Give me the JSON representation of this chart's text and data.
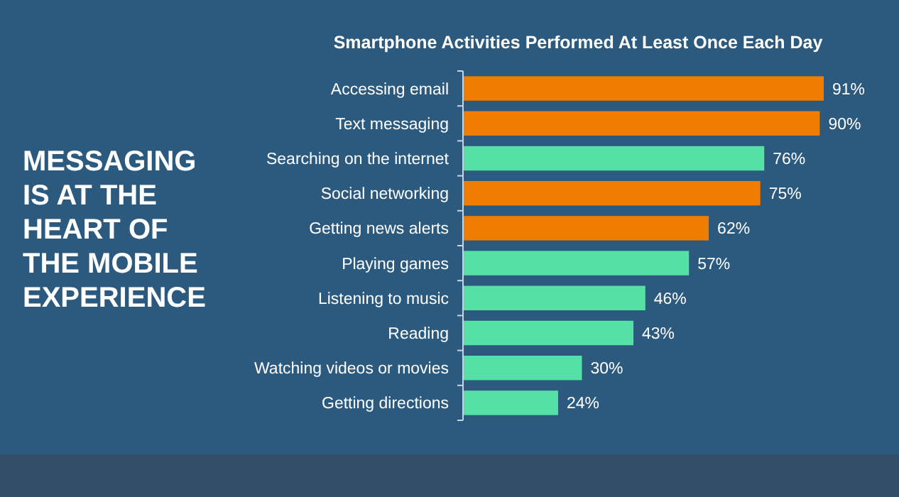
{
  "chart_data": {
    "type": "bar",
    "orientation": "horizontal",
    "title": "Smartphone Activities Performed At Least Once Each Day",
    "annotations": [
      "MESSAGING IS AT THE HEART OF THE MOBILE EXPERIENCE"
    ],
    "categories": [
      "Accessing email",
      "Text messaging",
      "Searching on the internet",
      "Social networking",
      "Getting news alerts",
      "Playing games",
      "Listening to music",
      "Reading",
      "Watching videos or movies",
      "Getting directions"
    ],
    "values": [
      91,
      90,
      76,
      75,
      62,
      57,
      46,
      43,
      30,
      24
    ],
    "colors": [
      "#f07d00",
      "#f07d00",
      "#55e0a6",
      "#f07d00",
      "#f07d00",
      "#55e0a6",
      "#55e0a6",
      "#55e0a6",
      "#55e0a6",
      "#55e0a6"
    ],
    "value_labels": [
      "91%",
      "90%",
      "76%",
      "75%",
      "62%",
      "57%",
      "46%",
      "43%",
      "30%",
      "24%"
    ]
  }
}
